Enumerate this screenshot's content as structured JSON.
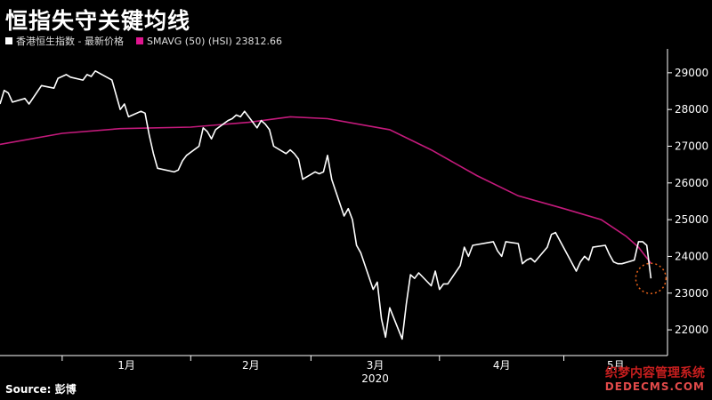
{
  "header": {
    "title": "恒指失守关键均线",
    "source_label": "Source:",
    "source_value": "彭博"
  },
  "legend": [
    {
      "label": "香港恒生指数 - 最新价格",
      "color": "#ffffff"
    },
    {
      "label": "SMAVG (50) (HSI) 23812.66",
      "color": "#e0158f"
    }
  ],
  "watermark": {
    "line1": "织梦内容管理系统",
    "line2": "DEDECMS.COM"
  },
  "colors": {
    "price": "#ffffff",
    "sma": "#c41a7c",
    "axis": "#ffffff",
    "highlight": "#e8621a"
  },
  "chart_data": {
    "type": "line",
    "title": "恒指失守关键均线",
    "x_ticks": [
      "1月",
      "2月",
      "3月",
      "4月",
      "5月"
    ],
    "x_year_label": "2020",
    "y_ticks": [
      22000,
      23000,
      24000,
      25000,
      26000,
      27000,
      28000,
      29000
    ],
    "ylim": [
      21300,
      29650
    ],
    "x_range": [
      "2019-12-17",
      "2020-05-14"
    ],
    "series": [
      {
        "name": "香港恒生指数 - 最新价格",
        "color": "#ffffff",
        "points": [
          [
            "2019-12-17",
            28150
          ],
          [
            "2019-12-18",
            28520
          ],
          [
            "2019-12-19",
            28450
          ],
          [
            "2019-12-20",
            28200
          ],
          [
            "2019-12-23",
            28300
          ],
          [
            "2019-12-24",
            28150
          ],
          [
            "2019-12-27",
            28650
          ],
          [
            "2019-12-30",
            28580
          ],
          [
            "2019-12-31",
            28850
          ],
          [
            "2020-01-02",
            28950
          ],
          [
            "2020-01-03",
            28880
          ],
          [
            "2020-01-06",
            28800
          ],
          [
            "2020-01-07",
            28950
          ],
          [
            "2020-01-08",
            28900
          ],
          [
            "2020-01-09",
            29050
          ],
          [
            "2020-01-13",
            28800
          ],
          [
            "2020-01-15",
            28000
          ],
          [
            "2020-01-16",
            28150
          ],
          [
            "2020-01-17",
            27800
          ],
          [
            "2020-01-20",
            27950
          ],
          [
            "2020-01-21",
            27900
          ],
          [
            "2020-01-22",
            27300
          ],
          [
            "2020-01-23",
            26800
          ],
          [
            "2020-01-24",
            26400
          ],
          [
            "2020-01-28",
            26300
          ],
          [
            "2020-01-29",
            26350
          ],
          [
            "2020-01-30",
            26600
          ],
          [
            "2020-01-31",
            26750
          ],
          [
            "2020-02-03",
            27000
          ],
          [
            "2020-02-04",
            27500
          ],
          [
            "2020-02-05",
            27400
          ],
          [
            "2020-02-06",
            27200
          ],
          [
            "2020-02-07",
            27450
          ],
          [
            "2020-02-10",
            27700
          ],
          [
            "2020-02-11",
            27750
          ],
          [
            "2020-02-12",
            27850
          ],
          [
            "2020-02-13",
            27800
          ],
          [
            "2020-02-14",
            27950
          ],
          [
            "2020-02-17",
            27500
          ],
          [
            "2020-02-18",
            27700
          ],
          [
            "2020-02-19",
            27600
          ],
          [
            "2020-02-20",
            27450
          ],
          [
            "2020-02-21",
            27000
          ],
          [
            "2020-02-24",
            26800
          ],
          [
            "2020-02-25",
            26900
          ],
          [
            "2020-02-26",
            26800
          ],
          [
            "2020-02-27",
            26650
          ],
          [
            "2020-02-28",
            26100
          ],
          [
            "2020-03-02",
            26300
          ],
          [
            "2020-03-03",
            26250
          ],
          [
            "2020-03-04",
            26300
          ],
          [
            "2020-03-05",
            26750
          ],
          [
            "2020-03-06",
            26100
          ],
          [
            "2020-03-09",
            25100
          ],
          [
            "2020-03-10",
            25300
          ],
          [
            "2020-03-11",
            25000
          ],
          [
            "2020-03-12",
            24300
          ],
          [
            "2020-03-13",
            24100
          ],
          [
            "2020-03-16",
            23100
          ],
          [
            "2020-03-17",
            23300
          ],
          [
            "2020-03-18",
            22300
          ],
          [
            "2020-03-19",
            21800
          ],
          [
            "2020-03-20",
            22600
          ],
          [
            "2020-03-23",
            21750
          ],
          [
            "2020-03-24",
            22700
          ],
          [
            "2020-03-25",
            23500
          ],
          [
            "2020-03-26",
            23400
          ],
          [
            "2020-03-27",
            23550
          ],
          [
            "2020-03-30",
            23200
          ],
          [
            "2020-03-31",
            23600
          ],
          [
            "2020-04-01",
            23100
          ],
          [
            "2020-04-02",
            23250
          ],
          [
            "2020-04-03",
            23250
          ],
          [
            "2020-04-06",
            23750
          ],
          [
            "2020-04-07",
            24250
          ],
          [
            "2020-04-08",
            24000
          ],
          [
            "2020-04-09",
            24300
          ],
          [
            "2020-04-14",
            24400
          ],
          [
            "2020-04-15",
            24150
          ],
          [
            "2020-04-16",
            24000
          ],
          [
            "2020-04-17",
            24400
          ],
          [
            "2020-04-20",
            24350
          ],
          [
            "2020-04-21",
            23800
          ],
          [
            "2020-04-22",
            23900
          ],
          [
            "2020-04-23",
            23950
          ],
          [
            "2020-04-24",
            23850
          ],
          [
            "2020-04-27",
            24250
          ],
          [
            "2020-04-28",
            24600
          ],
          [
            "2020-04-29",
            24650
          ],
          [
            "2020-05-04",
            23600
          ],
          [
            "2020-05-05",
            23850
          ],
          [
            "2020-05-06",
            24000
          ],
          [
            "2020-05-07",
            23900
          ],
          [
            "2020-05-08",
            24250
          ],
          [
            "2020-05-11",
            24300
          ],
          [
            "2020-05-12",
            24050
          ],
          [
            "2020-05-13",
            23850
          ],
          [
            "2020-05-14",
            23800
          ],
          [
            "2020-05-15",
            23800
          ],
          [
            "2020-05-18",
            23900
          ],
          [
            "2020-05-19",
            24400
          ],
          [
            "2020-05-20",
            24400
          ],
          [
            "2020-05-21",
            24300
          ],
          [
            "2020-05-22",
            23400
          ]
        ]
      },
      {
        "name": "SMAVG (50) (HSI) 23812.66",
        "color": "#c41a7c",
        "points": [
          [
            "2019-12-17",
            27050
          ],
          [
            "2020-01-01",
            27350
          ],
          [
            "2020-01-15",
            27480
          ],
          [
            "2020-02-01",
            27520
          ],
          [
            "2020-02-15",
            27650
          ],
          [
            "2020-02-25",
            27800
          ],
          [
            "2020-03-05",
            27750
          ],
          [
            "2020-03-20",
            27450
          ],
          [
            "2020-03-30",
            26900
          ],
          [
            "2020-04-10",
            26200
          ],
          [
            "2020-04-20",
            25650
          ],
          [
            "2020-05-01",
            25300
          ],
          [
            "2020-05-10",
            25000
          ],
          [
            "2020-05-16",
            24550
          ],
          [
            "2020-05-19",
            24250
          ],
          [
            "2020-05-22",
            23813
          ]
        ]
      }
    ],
    "annotations": [
      {
        "type": "circle",
        "at": [
          "2020-05-22",
          23400
        ],
        "color": "#e8621a",
        "style": "dotted"
      }
    ]
  }
}
